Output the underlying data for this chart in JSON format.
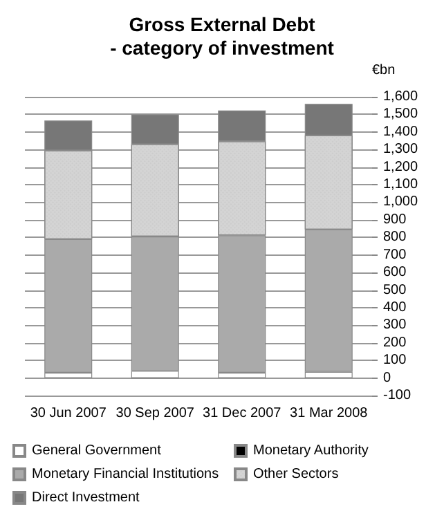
{
  "chart_data": {
    "type": "bar",
    "title": "Gross External Debt\n- category of investment",
    "ylabel": "€bn",
    "categories": [
      "30 Jun 2007",
      "30 Sep 2007",
      "31 Dec 2007",
      "31 Mar 2008"
    ],
    "stacked": true,
    "series": [
      {
        "name": "General Government",
        "color": "#ffffff",
        "values": [
          30,
          40,
          30,
          35
        ]
      },
      {
        "name": "Monetary Authority",
        "color": "#000000",
        "values": [
          null,
          -5,
          null,
          null
        ]
      },
      {
        "name": "Monetary Financial Institutions",
        "color": "#aaaaaa",
        "values": [
          760,
          765,
          782,
          810
        ]
      },
      {
        "name": "Other Sectors",
        "color": "#d4d4d4",
        "values": [
          505,
          525,
          535,
          535
        ]
      },
      {
        "name": "Direct Investment",
        "color": "#777777",
        "values": [
          170,
          170,
          175,
          180
        ]
      }
    ],
    "ylim": [
      -100,
      1600
    ],
    "yticks": [
      -100,
      0,
      100,
      200,
      300,
      400,
      500,
      600,
      700,
      800,
      900,
      {
        "value": 1000,
        "label": "1,000"
      },
      {
        "value": 1100,
        "label": "1,100"
      },
      {
        "value": 1200,
        "label": "1,200"
      },
      {
        "value": 1300,
        "label": "1,300"
      },
      {
        "value": 1400,
        "label": "1,400"
      },
      {
        "value": 1500,
        "label": "1,500"
      },
      {
        "value": 1600,
        "label": "1,600"
      }
    ],
    "grid": "y",
    "legend": "bottom"
  }
}
